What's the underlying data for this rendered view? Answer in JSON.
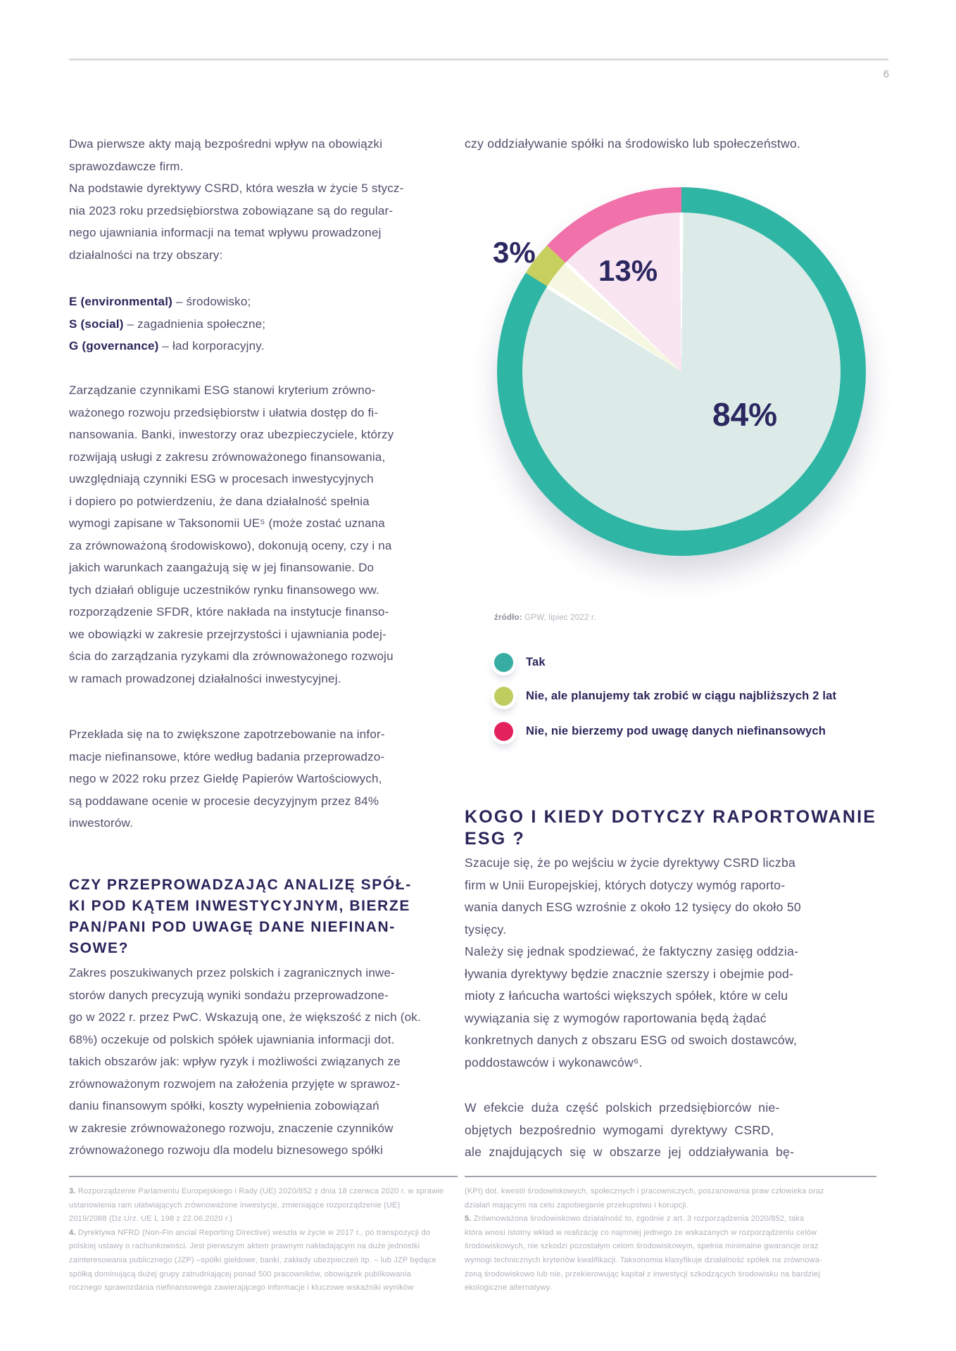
{
  "page": {
    "number": "6"
  },
  "left_column": {
    "para1_lines": [
      "Dwa pierwsze akty mają bezpośredni wpływ na obowiązki",
      "sprawozdawcze firm.",
      "Na podstawie dyrektywy CSRD, która weszła w życie 5 stycz-",
      "nia 2023 roku przedsiębiorstwa zobowiązane są do regular-",
      "nego ujawniania informacji na temat wpływu prowadzonej",
      "działalności na trzy obszary:"
    ],
    "esg_list": [
      {
        "term": "E (environmental)",
        "desc": " – środowisko;"
      },
      {
        "term": "S (social)",
        "desc": " – zagadnienia społeczne;"
      },
      {
        "term": "G (governance)",
        "desc": " – ład korporacyjny."
      }
    ],
    "para2_lines": [
      "Zarządzanie czynnikami ESG stanowi kryterium zrówno-",
      "ważonego rozwoju przedsiębiorstw i ułatwia dostęp do fi-",
      "nansowania. Banki, inwestorzy oraz ubezpieczyciele, którzy",
      "rozwijają usługi z zakresu zrównoważonego finansowania,",
      "uwzględniają czynniki ESG w procesach inwestycyjnych",
      "i dopiero po potwierdzeniu, że dana działalność spełnia",
      "wymogi zapisane w Taksonomii UE⁵ (może zostać uznana",
      "za zrównoważoną środowiskowo), dokonują oceny, czy i na",
      "jakich warunkach zaangażują się w jej finansowanie. Do",
      "tych działań obliguje uczestników rynku finansowego ww.",
      "rozporządzenie SFDR, które nakłada na instytucje finanso-",
      "we obowiązki w zakresie przejrzystości i ujawniania podej-",
      "ścia do zarządzania ryzykami dla zrównoważonego rozwoju",
      "w ramach prowadzonej działalności inwestycyjnej."
    ],
    "para3_lines": [
      "Przekłada się na to zwiększone zapotrzebowanie na infor-",
      "macje niefinansowe, które według badania przeprowadzo-",
      "nego w 2022 roku przez Giełdę Papierów Wartościowych,",
      "są poddawane ocenie w procesie decyzyjnym przez 84%",
      "inwestorów."
    ],
    "heading_lines": [
      "CZY PRZEPROWADZAJĄC ANALIZĘ SPÓŁ-",
      "KI POD KĄTEM INWESTYCYJNYM, BIERZE",
      "PAN/PANI POD UWAGĘ DANE NIEFINAN-",
      "SOWE?"
    ],
    "para4_lines": [
      "Zakres poszukiwanych przez polskich i zagranicznych inwe-",
      "storów danych precyzują wyniki sondażu przeprowadzone-",
      "go w 2022 r. przez PwC. Wskazują one, że większość z nich (ok.",
      "68%) oczekuje od polskich spółek ujawniania informacji dot.",
      "takich obszarów jak: wpływ ryzyk i możliwości związanych ze",
      "zrównoważonym rozwojem na założenia przyjęte w sprawoz-",
      "daniu finansowym spółki, koszty wypełnienia zobowiązań",
      "w zakresie zrównoważonego rozwoju, znaczenie czynników",
      "zrównoważonego rozwoju dla modelu biznesowego spółki"
    ],
    "footnotes": {
      "note3_num": "3.",
      "note3_lines": [
        " Rozporządzenie Parlamentu Europejskiego i Rady (UE) 2020/852 z dnia 18 czerwca 2020 r. w sprawie",
        "ustanowienia ram ułatwiających zrównoważone inwestycje, zmieniające rozporządzenie (UE)",
        "2019/2088 (Dz.Urz. UE L 198 z 22.06.2020 r.)"
      ],
      "note4_num": "4.",
      "note4_lines": [
        " Dyrektywa NFRD (Non-Fin ancial Reporting Directive) weszła w życie w 2017 r., po transpozycji do",
        "polskiej ustawy o rachunkowości. Jest pierwszym aktem prawnym nakładającym na duże jednostki",
        "zainteresowania publicznego (JZP) –spółki giełdowe, banki, zakłady ubezpieczeń itp. – lub JZP będące",
        "spółką dominującą dużej grupy zatrudniającej ponad 500 pracowników, obowiązek publikowania",
        "rocznego sprawozdania niefinansowego zawierającego informacje i kluczowe wskaźniki wyników"
      ]
    }
  },
  "right_column": {
    "intro_line": "czy oddziaływanie spółki na środowisko lub społeczeństwo.",
    "source_label": "źródło:",
    "source_value": " GPW, lipiec 2022 r.",
    "legend": [
      {
        "label": "Tak",
        "color": "#36aca2"
      },
      {
        "label": "Nie, ale planujemy tak zrobić w ciągu najbliższych 2 lat",
        "color": "#bfcc5f"
      },
      {
        "label": "Nie, nie bierzemy pod uwagę danych niefinansowych",
        "color": "#e3215c"
      }
    ],
    "heading_lines": [
      "KOGO I KIEDY DOTYCZY RAPORTOWANIE",
      "ESG ?"
    ],
    "para1_lines": [
      "Szacuje się, że po wejściu w życie dyrektywy CSRD liczba",
      "firm w Unii Europejskiej, których dotyczy wymóg raporto-",
      "wania danych ESG wzrośnie z około 12 tysięcy do około 50",
      "tysięcy.",
      "Należy się jednak spodziewać, że faktyczny zasięg oddzia-",
      "ływania dyrektywy będzie znacznie szerszy i obejmie pod-",
      "mioty z łańcucha wartości większych spółek, które w celu",
      "wywiązania się z wymogów raportowania będą żądać",
      "konkretnych danych z obszaru ESG od swoich dostawców,",
      "poddostawców i wykonawców⁶."
    ],
    "para2_lines": [
      "W efekcie duża część polskich przedsiębiorców nie-",
      "objętych bezpośrednio wymogami dyrektywy CSRD,",
      "ale znajdujących się w obszarze jej oddziaływania bę-"
    ],
    "footnotes": {
      "cont_lines": [
        "(KPI) dot. kwestii środowiskowych, społecznych i pracowniczych, poszanowania praw człowieka oraz",
        "działań mającymi na celu zapobieganie przekupstwu i korupcji."
      ],
      "note5_num": "5.",
      "note5_lines": [
        " Zrównoważona środowiskowo działalność to, zgodnie z art. 3 rozporządzenia 2020/852, taka",
        "która wnosi istotny wkład w realizację co najmniej jednego ze wskazanych w rozporządzeniu celów",
        "środowiskowych, nie szkodzi pozostałym celom środowiskowym, spełnia minimalne gwarancje oraz",
        "wymogi technicznych kryteriów kwalifikacji. Taksonomia klasyfikuje działalność spółek na zrównowa-",
        "żoną środowiskowo lub nie, przekierowując kapitał z inwestycji szkodzących środowisku na bardziej",
        "ekologiczne alternatywy."
      ]
    }
  },
  "chart_data": {
    "type": "pie",
    "title": "",
    "source": "GPW, lipiec 2022 r.",
    "legend_position": "below",
    "slices": [
      {
        "label": "Tak",
        "value": 84,
        "display": "84%",
        "color": "#2fb5a4",
        "inner_color": "#dcebe8"
      },
      {
        "label": "Nie, ale planujemy tak zrobić w ciągu najbliższych 2 lat",
        "value": 3,
        "display": "3%",
        "color": "#c7d05f",
        "inner_color": "#f5f7e0"
      },
      {
        "label": "Nie, nie bierzemy pod uwagę danych niefinansowych",
        "value": 13,
        "display": "13%",
        "color": "#f171aa",
        "inner_color": "#f9e5f1"
      }
    ],
    "order": "clockwise-from-top"
  }
}
